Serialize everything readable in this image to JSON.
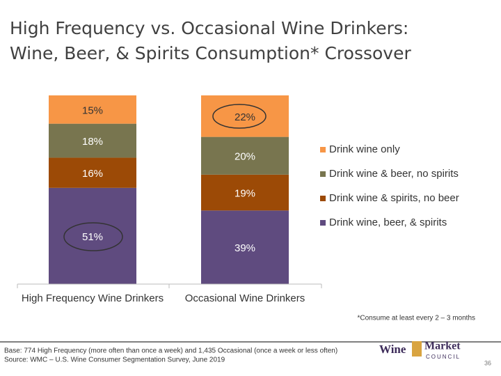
{
  "chart_data": {
    "type": "stacked_bar",
    "title_lines": [
      "High Frequency vs. Occasional Wine Drinkers:",
      "Wine, Beer, & Spirits Consumption* Crossover"
    ],
    "categories": [
      "High Frequency Wine Drinkers",
      "Occasional Wine Drinkers"
    ],
    "ylim": [
      0,
      100
    ],
    "series": [
      {
        "name": "Drink wine, beer, & spirits",
        "color": "#5f4b7f",
        "values": [
          51,
          39
        ],
        "value_labels": [
          "51%",
          "39%"
        ]
      },
      {
        "name": "Drink wine & spirits, no beer",
        "color": "#9c4a06",
        "values": [
          16,
          19
        ],
        "value_labels": [
          "16%",
          "19%"
        ]
      },
      {
        "name": "Drink wine & beer, no spirits",
        "color": "#78754f",
        "values": [
          18,
          20
        ],
        "value_labels": [
          "18%",
          "20%"
        ]
      },
      {
        "name": "Drink wine only",
        "color": "#f79646",
        "values": [
          15,
          22
        ],
        "value_labels": [
          "15%",
          "22%"
        ]
      }
    ],
    "legend": "right",
    "footnote": "*Consume at least every 2 – 3 months"
  },
  "footer": {
    "source_lines": [
      "Base: 774 High Frequency (more often than once a week) and 1,435 Occasional (once a week or less often)",
      "Source: WMC – U.S. Wine Consumer Segmentation Survey, June 2019"
    ],
    "logo": {
      "word1": "Wine",
      "word2": "Market",
      "word3": "COUNCIL"
    },
    "page_number": 36
  }
}
